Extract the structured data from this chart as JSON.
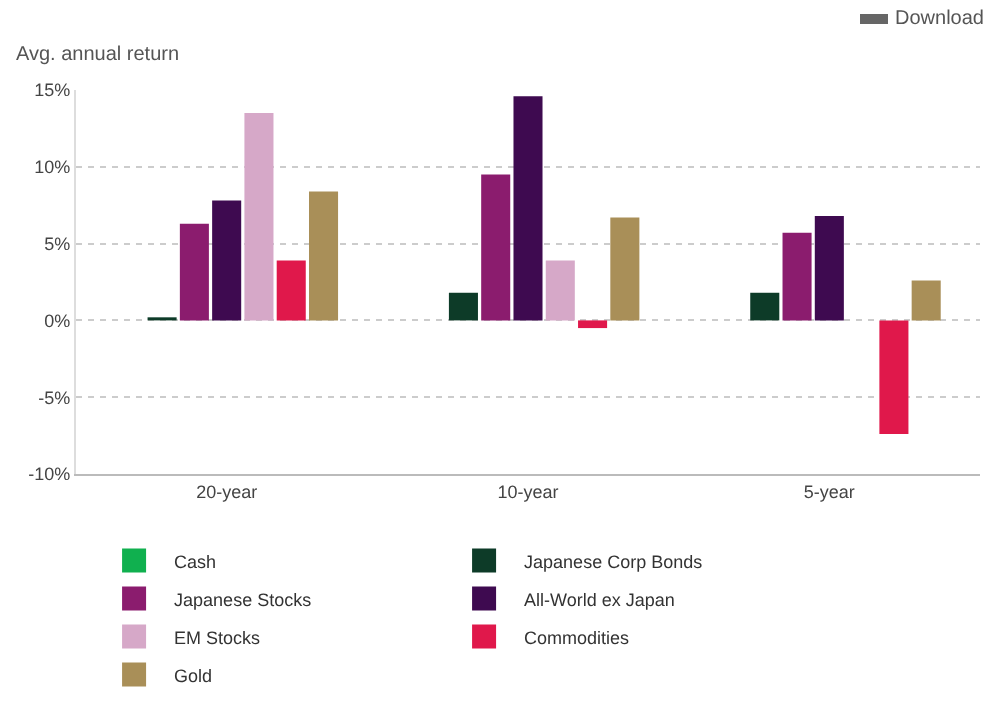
{
  "chart_data": {
    "type": "bar",
    "ylabel": "Avg. annual return",
    "categories": [
      "20-year",
      "10-year",
      "5-year"
    ],
    "series": [
      {
        "name": "Cash",
        "color": "#10b04f",
        "values": [
          0,
          0,
          0
        ]
      },
      {
        "name": "Japanese Corp Bonds",
        "color": "#0d3b28",
        "values": [
          0.2,
          1.8,
          1.8
        ]
      },
      {
        "name": "Japanese Stocks",
        "color": "#8b1c6e",
        "values": [
          6.3,
          9.5,
          5.7
        ]
      },
      {
        "name": "All-World ex Japan",
        "color": "#3e0a50",
        "values": [
          7.8,
          14.6,
          6.8
        ]
      },
      {
        "name": "EM Stocks",
        "color": "#d6a8c8",
        "values": [
          13.5,
          3.9,
          0
        ]
      },
      {
        "name": "Commodities",
        "color": "#e0184b",
        "values": [
          3.9,
          -0.5,
          -7.4
        ]
      },
      {
        "name": "Gold",
        "color": "#a98f58",
        "values": [
          8.4,
          6.7,
          2.6
        ]
      }
    ],
    "ylim": [
      -10,
      15
    ],
    "yticks": [
      {
        "value": -10,
        "label": "-10%"
      },
      {
        "value": -5,
        "label": "-5%"
      },
      {
        "value": 0,
        "label": "0%"
      },
      {
        "value": 5,
        "label": "5%"
      },
      {
        "value": 10,
        "label": "10%"
      },
      {
        "value": 15,
        "label": "15%"
      }
    ],
    "grid": "y",
    "legend": "bottom",
    "annotations": [
      "Download"
    ]
  }
}
